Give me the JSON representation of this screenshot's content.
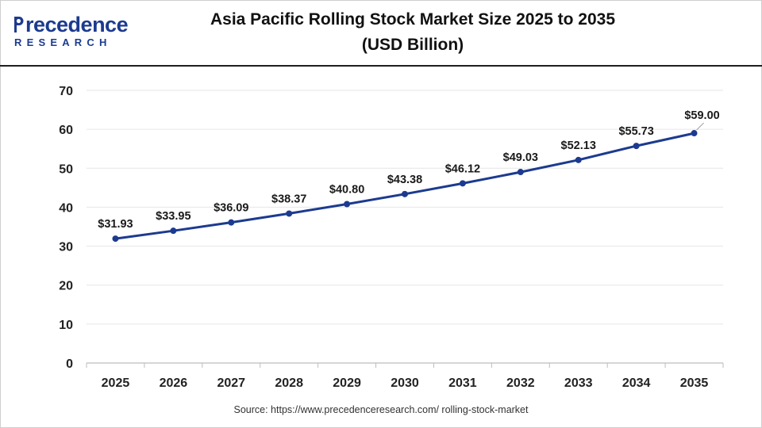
{
  "header": {
    "logo_word": "recedence",
    "logo_sub": "RESEARCH",
    "title_line1": "Asia Pacific Rolling Stock Market Size 2025 to 2035",
    "title_line2": "(USD Billion)"
  },
  "colors": {
    "series": "#1c3b8f",
    "brand": "#1c3b8f",
    "grid": "#e6e6e6"
  },
  "chart_data": {
    "type": "line",
    "title": "Asia Pacific Rolling Stock Market Size 2025 to 2035 (USD Billion)",
    "xlabel": "",
    "ylabel": "",
    "categories": [
      "2025",
      "2026",
      "2027",
      "2028",
      "2029",
      "2030",
      "2031",
      "2032",
      "2033",
      "2034",
      "2035"
    ],
    "series": [
      {
        "values": [
          31.93,
          33.95,
          36.09,
          38.37,
          40.8,
          43.38,
          46.12,
          49.03,
          52.13,
          55.73,
          59.0
        ],
        "labels": [
          "$31.93",
          "$33.95",
          "$36.09",
          "$38.37",
          "$40.80",
          "$43.38",
          "$46.12",
          "$49.03",
          "$52.13",
          "$55.73",
          "$59.00"
        ]
      }
    ],
    "ylim": [
      0,
      70
    ],
    "yticks": [
      0,
      10,
      20,
      30,
      40,
      50,
      60,
      70
    ],
    "grid": true,
    "legend": "none"
  },
  "source_text": "Source: https://www.precedenceresearch.com/ rolling-stock-market"
}
